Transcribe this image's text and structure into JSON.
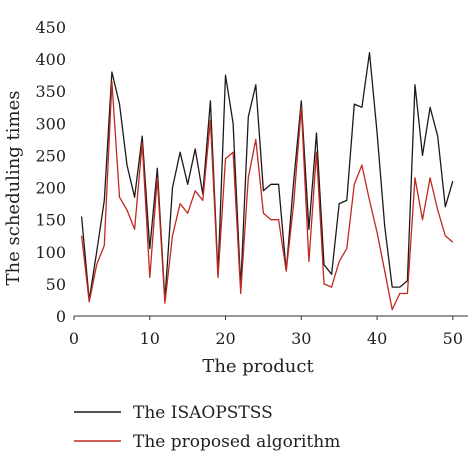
{
  "chart_data": {
    "type": "line",
    "xlabel": "The product",
    "ylabel": "The scheduling times",
    "xlim": [
      0,
      52
    ],
    "ylim": [
      0,
      450
    ],
    "xticks": [
      0,
      10,
      20,
      30,
      40,
      50
    ],
    "yticks": [
      0,
      50,
      100,
      150,
      200,
      250,
      300,
      350,
      400,
      450
    ],
    "grid": false,
    "legend_position": "bottom",
    "x": [
      1,
      2,
      3,
      4,
      5,
      6,
      7,
      8,
      9,
      10,
      11,
      12,
      13,
      14,
      15,
      16,
      17,
      18,
      19,
      20,
      21,
      22,
      23,
      24,
      25,
      26,
      27,
      28,
      29,
      30,
      31,
      32,
      33,
      34,
      35,
      36,
      37,
      38,
      39,
      40,
      41,
      42,
      43,
      44,
      45,
      46,
      47,
      48,
      49,
      50
    ],
    "series": [
      {
        "name": "The ISAOPSTSS",
        "color": "#1a1a1a",
        "values": [
          155,
          25,
          100,
          180,
          380,
          330,
          235,
          185,
          280,
          105,
          230,
          25,
          200,
          255,
          205,
          260,
          190,
          335,
          65,
          375,
          300,
          45,
          310,
          360,
          195,
          205,
          205,
          70,
          210,
          335,
          135,
          285,
          80,
          65,
          175,
          180,
          330,
          325,
          410,
          285,
          140,
          45,
          45,
          55,
          360,
          250,
          325,
          280,
          170,
          210
        ]
      },
      {
        "name": "The proposed algorithm",
        "color": "#c0281e",
        "values": [
          125,
          22,
          80,
          110,
          365,
          185,
          165,
          135,
          270,
          60,
          215,
          20,
          125,
          175,
          160,
          195,
          180,
          305,
          60,
          245,
          255,
          35,
          215,
          275,
          160,
          150,
          150,
          70,
          175,
          325,
          85,
          255,
          50,
          45,
          85,
          105,
          205,
          235,
          180,
          130,
          70,
          10,
          35,
          35,
          215,
          150,
          215,
          165,
          125,
          115
        ]
      }
    ]
  }
}
